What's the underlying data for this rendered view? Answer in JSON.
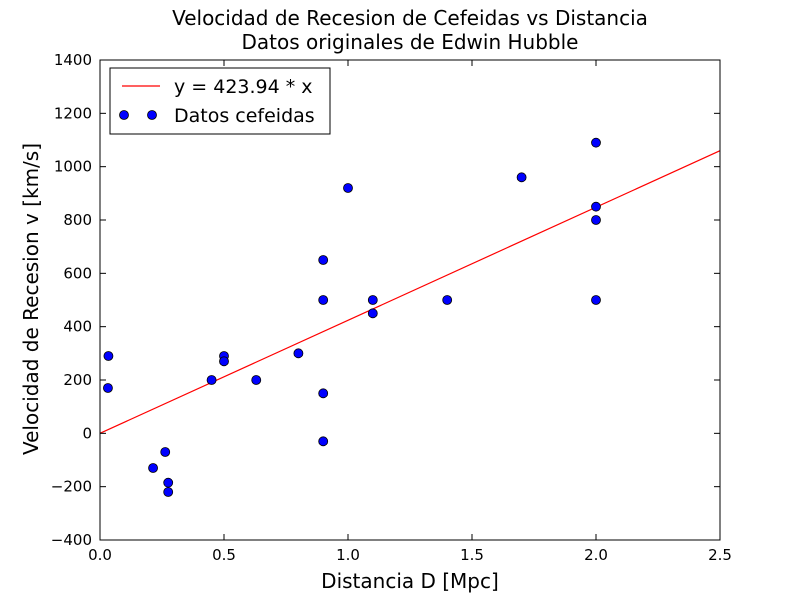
{
  "chart_data": {
    "type": "scatter",
    "title": "Velocidad de Recesion de Cefeidas vs Distancia",
    "subtitle": "Datos originales de Edwin Hubble",
    "xlabel": "Distancia D [Mpc]",
    "ylabel": "Velocidad de Recesion v [km/s]",
    "xlim": [
      0,
      2.5
    ],
    "ylim": [
      -400,
      1400
    ],
    "xticks": [
      0.0,
      0.5,
      1.0,
      1.5,
      2.0,
      2.5
    ],
    "xtick_labels": [
      "0.0",
      "0.5",
      "1.0",
      "1.5",
      "2.0",
      "2.5"
    ],
    "yticks": [
      -400,
      -200,
      0,
      200,
      400,
      600,
      800,
      1000,
      1200,
      1400
    ],
    "ytick_labels": [
      "−400",
      "−200",
      "0",
      "200",
      "400",
      "600",
      "800",
      "1000",
      "1200",
      "1400"
    ],
    "grid": false,
    "legend_position": "top-left",
    "fit": {
      "name": "y = 423.94 * x",
      "slope": 423.94,
      "intercept": 0,
      "color": "#ff0000"
    },
    "series": [
      {
        "name": "Datos cefeidas",
        "color": "#0000ff",
        "points": [
          [
            0.032,
            170
          ],
          [
            0.034,
            290
          ],
          [
            0.214,
            -130
          ],
          [
            0.263,
            -70
          ],
          [
            0.275,
            -185
          ],
          [
            0.275,
            -220
          ],
          [
            0.45,
            200
          ],
          [
            0.5,
            290
          ],
          [
            0.5,
            270
          ],
          [
            0.63,
            200
          ],
          [
            0.8,
            300
          ],
          [
            0.9,
            -30
          ],
          [
            0.9,
            650
          ],
          [
            0.9,
            150
          ],
          [
            0.9,
            500
          ],
          [
            1.0,
            920
          ],
          [
            1.1,
            450
          ],
          [
            1.1,
            500
          ],
          [
            1.4,
            500
          ],
          [
            1.7,
            960
          ],
          [
            2.0,
            500
          ],
          [
            2.0,
            850
          ],
          [
            2.0,
            800
          ],
          [
            2.0,
            1090
          ]
        ]
      }
    ]
  }
}
